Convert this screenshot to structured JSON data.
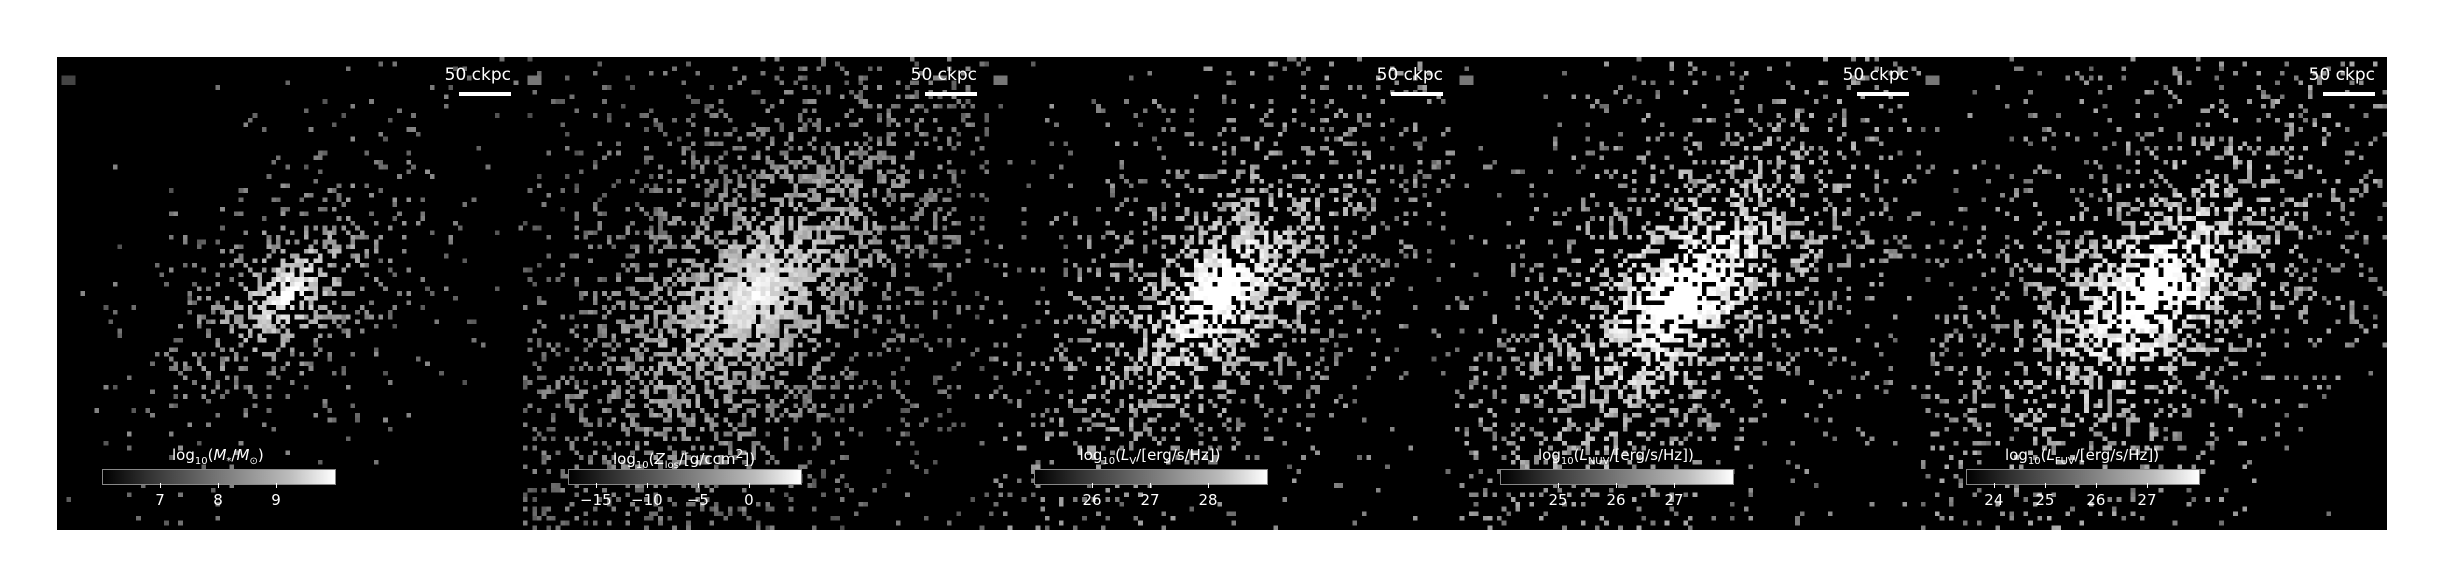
{
  "figure": {
    "panels": [
      {
        "id": "stellar-mass",
        "scalebar_label": "50 ckpc",
        "colorbar_label_html": "log<sub>10</sub>(<i>M</i><sub>*</sub>/<i>M</i><sub>⊙</sub>)",
        "colorbar_ticks": [
          "7",
          "8",
          "9"
        ],
        "spread": 0.55,
        "brightness": 0.9
      },
      {
        "id": "metal-density",
        "scalebar_label": "50 ckpc",
        "colorbar_label_html": "log<sub>10</sub>(<i>Z</i><sub>los</sub>/[g/ccm<sup>2</sup>])",
        "colorbar_ticks": [
          "−15",
          "−10",
          "−5",
          "0"
        ],
        "spread": 1.25,
        "brightness": 0.8
      },
      {
        "id": "luminosity-v",
        "scalebar_label": "50 ckpc",
        "colorbar_label_html": "log<sub>10</sub>(<i>L</i><sub>V</sub>/[erg/s/Hz])",
        "colorbar_ticks": [
          "26",
          "27",
          "28"
        ],
        "spread": 0.9,
        "brightness": 1.0
      },
      {
        "id": "luminosity-nuv",
        "scalebar_label": "50 ckpc",
        "colorbar_label_html": "log<sub>10</sub>(<i>L</i><sub>NUV</sub>/[erg/s/Hz])",
        "colorbar_ticks": [
          "25",
          "26",
          "27"
        ],
        "spread": 1.0,
        "brightness": 1.05
      },
      {
        "id": "luminosity-fuv",
        "scalebar_label": "50 ckpc",
        "colorbar_label_html": "log<sub>10</sub>(<i>L</i><sub>FUV</sub>/[erg/s/Hz])",
        "colorbar_ticks": [
          "24",
          "25",
          "26",
          "27"
        ],
        "spread": 1.0,
        "brightness": 1.05
      }
    ]
  }
}
